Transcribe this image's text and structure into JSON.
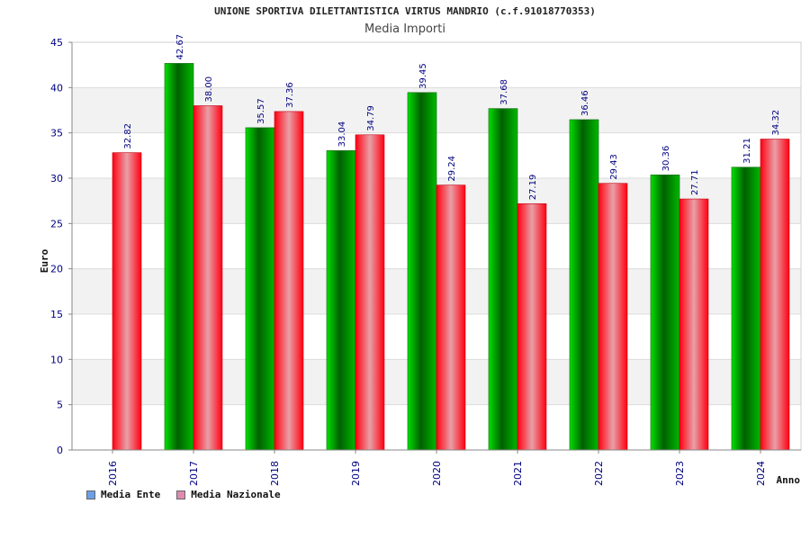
{
  "header": {
    "title": "UNIONE SPORTIVA DILETTANTISTICA VIRTUS MANDRIO (c.f.91018770353)",
    "subtitle": "Media Importi"
  },
  "legend": [
    {
      "label": "Media Ente",
      "color": "#6aa0e8"
    },
    {
      "label": "Media Nazionale",
      "color": "#e08ab0"
    }
  ],
  "colors": {
    "ente": "#00a000",
    "nazionale": "#ff2030",
    "tick_label": "#000080"
  },
  "chart_data": {
    "type": "bar",
    "title": "Media Importi",
    "xlabel": "Anno",
    "ylabel": "Euro",
    "ylim": [
      0,
      45
    ],
    "yticks": [
      0,
      5,
      10,
      15,
      20,
      25,
      30,
      35,
      40,
      45
    ],
    "grid": true,
    "legend_position": "bottom-left",
    "categories": [
      "2016",
      "2017",
      "2018",
      "2019",
      "2020",
      "2021",
      "2022",
      "2023",
      "2024"
    ],
    "series": [
      {
        "name": "Media Ente",
        "values": [
          null,
          42.67,
          35.57,
          33.04,
          39.45,
          37.68,
          36.46,
          30.36,
          31.21
        ],
        "labels": [
          null,
          "42.67",
          "35.57",
          "33.04",
          "39.45",
          "37.68",
          "36.46",
          "30.36",
          "31.21"
        ]
      },
      {
        "name": "Media Nazionale",
        "values": [
          32.82,
          38.0,
          37.36,
          34.79,
          29.24,
          27.19,
          29.43,
          27.71,
          34.32
        ],
        "labels": [
          "32.82",
          "38.00",
          "37.36",
          "34.79",
          "29.24",
          "27.19",
          "29.43",
          "27.71",
          "34.32"
        ]
      }
    ]
  }
}
